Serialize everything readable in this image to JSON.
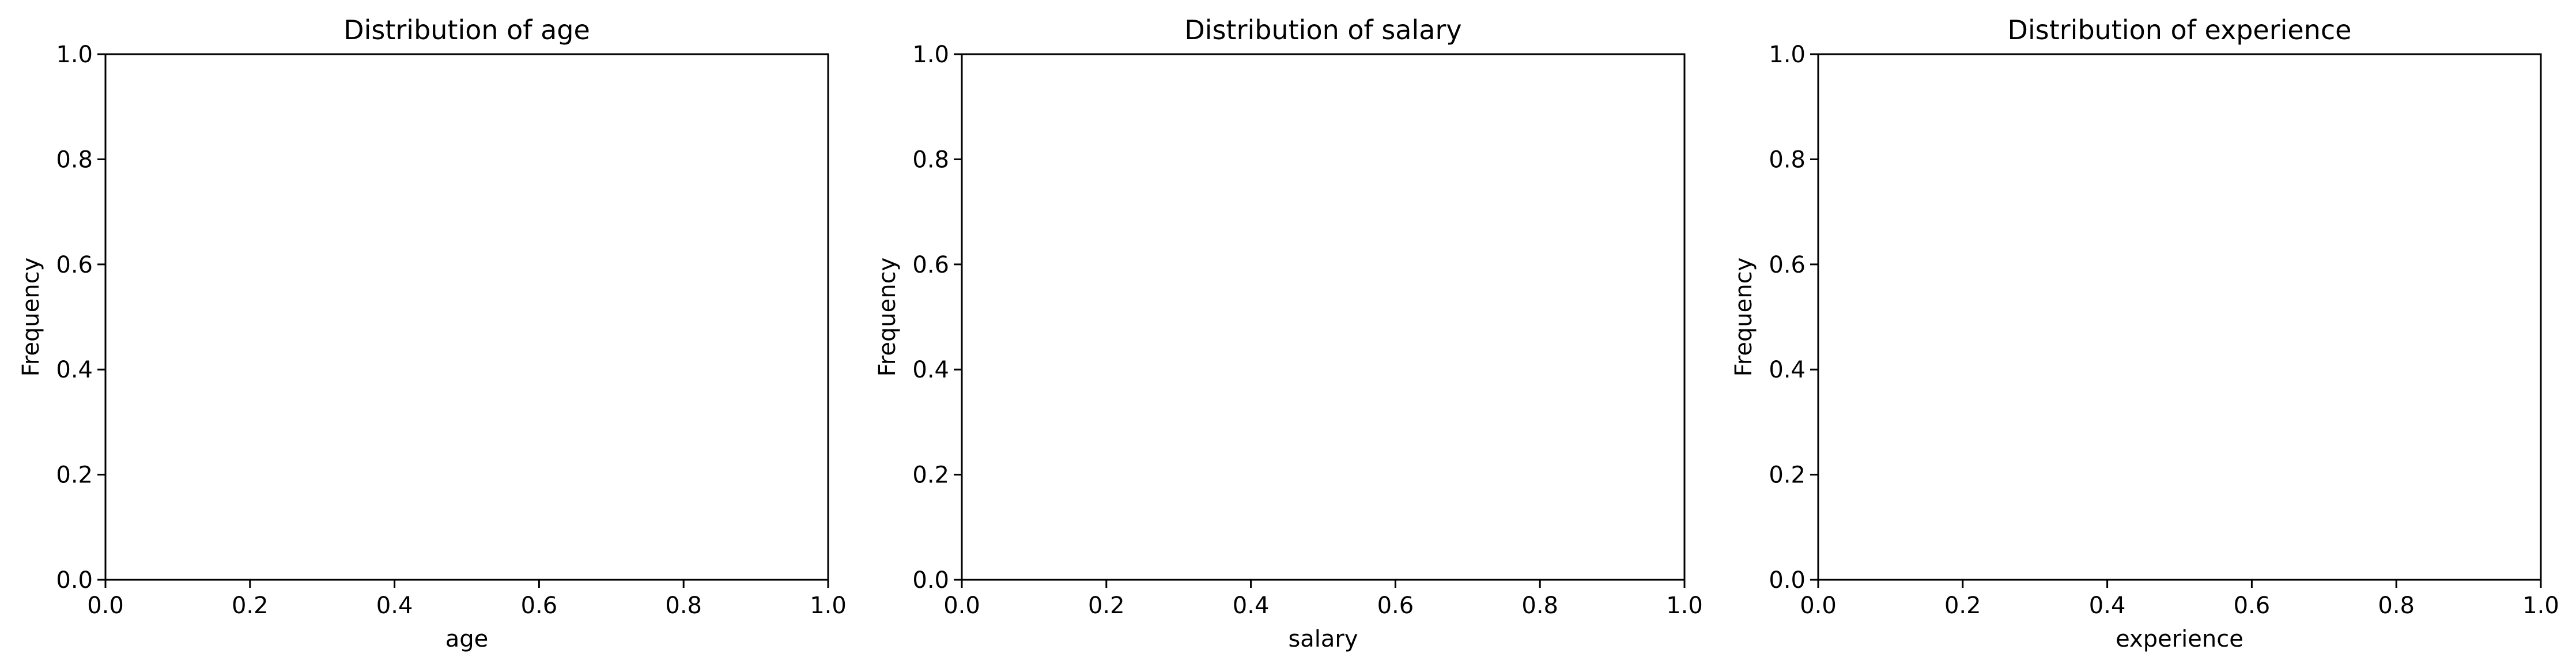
{
  "chart_data": [
    {
      "type": "bar",
      "title": "Distribution of age",
      "xlabel": "age",
      "ylabel": "Frequency",
      "xlim": [
        0.0,
        1.0
      ],
      "ylim": [
        0.0,
        1.0
      ],
      "xticks": [
        "0.0",
        "0.2",
        "0.4",
        "0.6",
        "0.8",
        "1.0"
      ],
      "yticks": [
        "0.0",
        "0.2",
        "0.4",
        "0.6",
        "0.8",
        "1.0"
      ],
      "series": [],
      "grid": false
    },
    {
      "type": "bar",
      "title": "Distribution of salary",
      "xlabel": "salary",
      "ylabel": "Frequency",
      "xlim": [
        0.0,
        1.0
      ],
      "ylim": [
        0.0,
        1.0
      ],
      "xticks": [
        "0.0",
        "0.2",
        "0.4",
        "0.6",
        "0.8",
        "1.0"
      ],
      "yticks": [
        "0.0",
        "0.2",
        "0.4",
        "0.6",
        "0.8",
        "1.0"
      ],
      "series": [],
      "grid": false
    },
    {
      "type": "bar",
      "title": "Distribution of experience",
      "xlabel": "experience",
      "ylabel": "Frequency",
      "xlim": [
        0.0,
        1.0
      ],
      "ylim": [
        0.0,
        1.0
      ],
      "xticks": [
        "0.0",
        "0.2",
        "0.4",
        "0.6",
        "0.8",
        "1.0"
      ],
      "yticks": [
        "0.0",
        "0.2",
        "0.4",
        "0.6",
        "0.8",
        "1.0"
      ],
      "series": [],
      "grid": false
    }
  ]
}
